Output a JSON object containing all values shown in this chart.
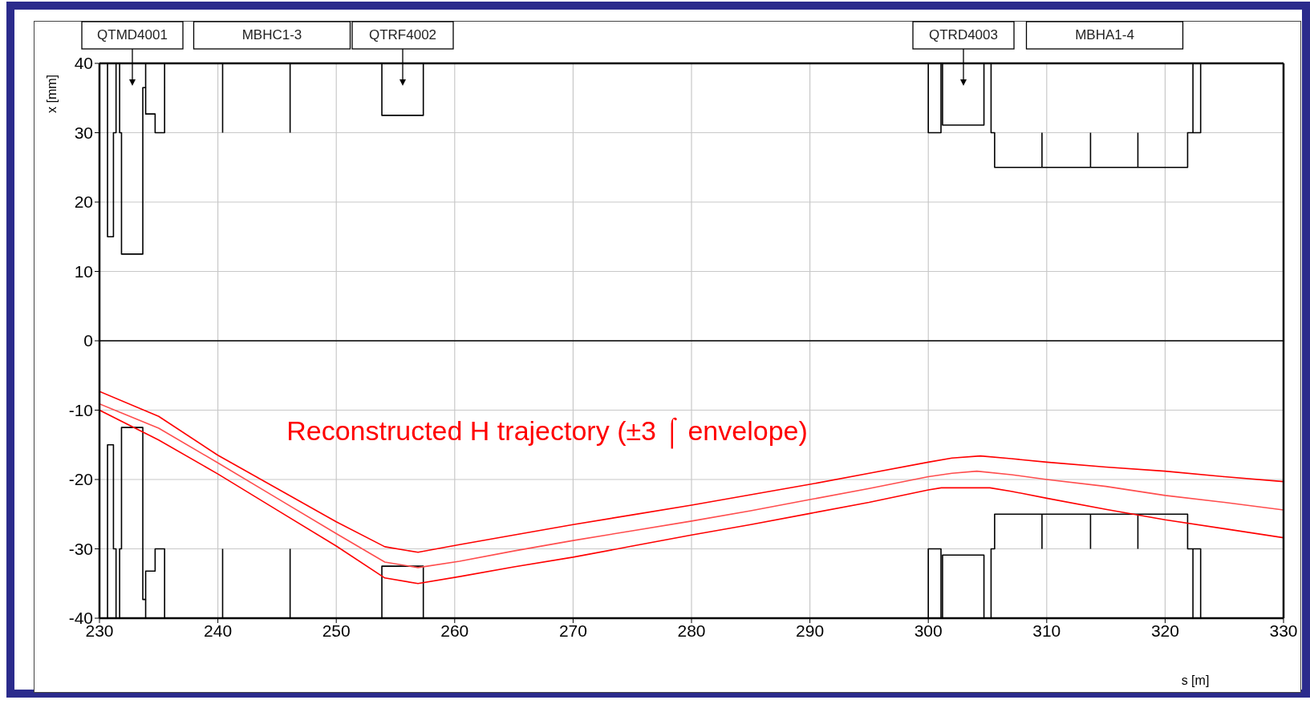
{
  "chart_data": {
    "type": "line",
    "xlabel": "s [m]",
    "ylabel": "x [mm]",
    "xlim": [
      230,
      330
    ],
    "ylim": [
      -40,
      40
    ],
    "xticks": [
      230,
      240,
      250,
      260,
      270,
      280,
      290,
      300,
      310,
      320,
      330
    ],
    "yticks": [
      -40,
      -30,
      -20,
      -10,
      0,
      10,
      20,
      30,
      40
    ],
    "grid": true,
    "marker": "none",
    "line_style": "solid",
    "ref_lines": [
      {
        "axis": "y",
        "value": 0,
        "color": "#000000"
      }
    ],
    "series": [
      {
        "color": "#000000",
        "x": [
          230.68,
          230.68,
          231.18,
          231.18,
          231.4,
          231.4
        ],
        "values": [
          40,
          15,
          15,
          30,
          30,
          40
        ]
      },
      {
        "color": "#000000",
        "x": [
          231.7,
          231.7,
          231.86,
          231.86,
          233.66,
          233.66,
          233.9,
          233.9,
          234.7,
          234.7,
          235.5,
          235.5
        ],
        "values": [
          40,
          30,
          30,
          12.5,
          12.5,
          36.5,
          36.5,
          32.7,
          32.7,
          30,
          30,
          40
        ]
      },
      {
        "color": "#000000",
        "x": [
          233.9,
          233.9
        ],
        "values": [
          40,
          36.5
        ]
      },
      {
        "color": "#000000",
        "x": [
          240.4,
          240.4
        ],
        "values": [
          40,
          30
        ]
      },
      {
        "color": "#000000",
        "x": [
          246.1,
          246.1
        ],
        "values": [
          40,
          30
        ]
      },
      {
        "color": "#000000",
        "x": [
          253.85,
          253.85,
          257.35,
          257.35
        ],
        "values": [
          40,
          32.5,
          32.5,
          40
        ]
      },
      {
        "color": "#000000",
        "x": [
          300,
          300,
          301.07,
          301.07
        ],
        "values": [
          40,
          30,
          30,
          40
        ]
      },
      {
        "color": "#000000",
        "x": [
          301.2,
          301.2,
          304.7,
          304.7
        ],
        "values": [
          40,
          31.1,
          31.1,
          40
        ]
      },
      {
        "color": "#000000",
        "x": [
          305.3,
          305.3,
          305.6,
          305.6,
          321.9,
          321.9,
          323,
          323
        ],
        "values": [
          40,
          30,
          30,
          25,
          25,
          30,
          30,
          40
        ]
      },
      {
        "color": "#000000",
        "x": [
          322.35,
          322.35
        ],
        "values": [
          40,
          30
        ]
      },
      {
        "color": "#000000",
        "x": [
          309.6,
          309.6
        ],
        "values": [
          30,
          25
        ]
      },
      {
        "color": "#000000",
        "x": [
          313.7,
          313.7
        ],
        "values": [
          30,
          25
        ]
      },
      {
        "color": "#000000",
        "x": [
          317.7,
          317.7
        ],
        "values": [
          30,
          25
        ]
      },
      {
        "color": "#000000",
        "x": [
          230.68,
          230.68,
          231.18,
          231.18,
          231.4,
          231.4
        ],
        "values": [
          -40,
          -15,
          -15,
          -30,
          -30,
          -40
        ]
      },
      {
        "color": "#000000",
        "x": [
          231.7,
          231.7,
          231.86,
          231.86,
          233.66,
          233.66,
          233.9,
          233.9,
          234.7,
          234.7,
          235.5,
          235.5
        ],
        "values": [
          -40,
          -30,
          -30,
          -12.5,
          -12.5,
          -37.3,
          -37.3,
          -33.2,
          -33.2,
          -30,
          -30,
          -40
        ]
      },
      {
        "color": "#000000",
        "x": [
          233.9,
          233.9
        ],
        "values": [
          -40,
          -37.3
        ]
      },
      {
        "color": "#000000",
        "x": [
          240.4,
          240.4
        ],
        "values": [
          -40,
          -30
        ]
      },
      {
        "color": "#000000",
        "x": [
          246.1,
          246.1
        ],
        "values": [
          -40,
          -30
        ]
      },
      {
        "color": "#000000",
        "x": [
          253.85,
          253.85,
          257.35,
          257.35
        ],
        "values": [
          -40,
          -32.5,
          -32.5,
          -40
        ]
      },
      {
        "color": "#000000",
        "x": [
          300,
          300,
          301.07,
          301.07
        ],
        "values": [
          -40,
          -30,
          -30,
          -40
        ]
      },
      {
        "color": "#000000",
        "x": [
          301.2,
          301.2,
          304.7,
          304.7
        ],
        "values": [
          -40,
          -30.9,
          -30.9,
          -40
        ]
      },
      {
        "color": "#000000",
        "x": [
          305.3,
          305.3,
          305.6,
          305.6,
          321.9,
          321.9,
          323,
          323
        ],
        "values": [
          -40,
          -30,
          -30,
          -25,
          -25,
          -30,
          -30,
          -40
        ]
      },
      {
        "color": "#000000",
        "x": [
          322.35,
          322.35
        ],
        "values": [
          -40,
          -30
        ]
      },
      {
        "color": "#000000",
        "x": [
          309.6,
          309.6
        ],
        "values": [
          -30,
          -25
        ]
      },
      {
        "color": "#000000",
        "x": [
          313.7,
          313.7
        ],
        "values": [
          -30,
          -25
        ]
      },
      {
        "color": "#000000",
        "x": [
          317.7,
          317.7
        ],
        "values": [
          -30,
          -25
        ]
      },
      {
        "color": "#ff0000",
        "x": [
          230,
          235,
          240,
          245,
          250,
          254.1,
          256.9,
          260.4,
          265,
          270,
          275,
          280,
          285,
          290,
          295,
          300,
          302,
          304.4,
          307,
          310,
          315,
          320,
          325,
          330
        ],
        "values": [
          -7.3,
          -10.9,
          -16.5,
          -21.3,
          -26.1,
          -29.7,
          -30.5,
          -29.4,
          -28,
          -26.5,
          -25.1,
          -23.7,
          -22.2,
          -20.7,
          -19.1,
          -17.5,
          -16.9,
          -16.6,
          -17,
          -17.5,
          -18.2,
          -18.8,
          -19.6,
          -20.3
        ]
      },
      {
        "color": "#ff4d4d",
        "x": [
          230,
          235,
          240,
          245,
          250,
          254.1,
          256.9,
          260.4,
          265,
          270,
          275,
          280,
          285,
          290,
          295,
          300,
          302,
          304.1,
          307,
          310,
          315,
          320,
          325,
          330
        ],
        "values": [
          -9.1,
          -12.6,
          -17.6,
          -22.7,
          -27.8,
          -31.9,
          -32.7,
          -31.8,
          -30.3,
          -28.8,
          -27.4,
          -26,
          -24.5,
          -22.9,
          -21.3,
          -19.6,
          -19.1,
          -18.8,
          -19.3,
          -20,
          -21,
          -22.3,
          -23.3,
          -24.4
        ]
      },
      {
        "color": "#ff0000",
        "x": [
          230,
          235,
          240,
          245,
          250,
          254.1,
          256.9,
          260.4,
          265,
          270,
          275,
          280,
          285,
          290,
          295,
          300,
          301.1,
          305.2,
          307,
          310,
          315,
          320,
          325,
          330
        ],
        "values": [
          -10,
          -14.3,
          -19.2,
          -24.4,
          -29.6,
          -34.2,
          -35,
          -34,
          -32.6,
          -31.2,
          -29.6,
          -28,
          -26.5,
          -24.9,
          -23.3,
          -21.5,
          -21.2,
          -21.2,
          -21.7,
          -22.7,
          -24.3,
          -25.8,
          -27.1,
          -28.4
        ]
      }
    ],
    "annotations": [
      "QTMD4001",
      "MBHC1-3",
      "QTRF4002",
      "QTRD4003",
      "MBHA1-4",
      "Reconstructed H trajectory (±3 ⌠ envelope)"
    ]
  }
}
